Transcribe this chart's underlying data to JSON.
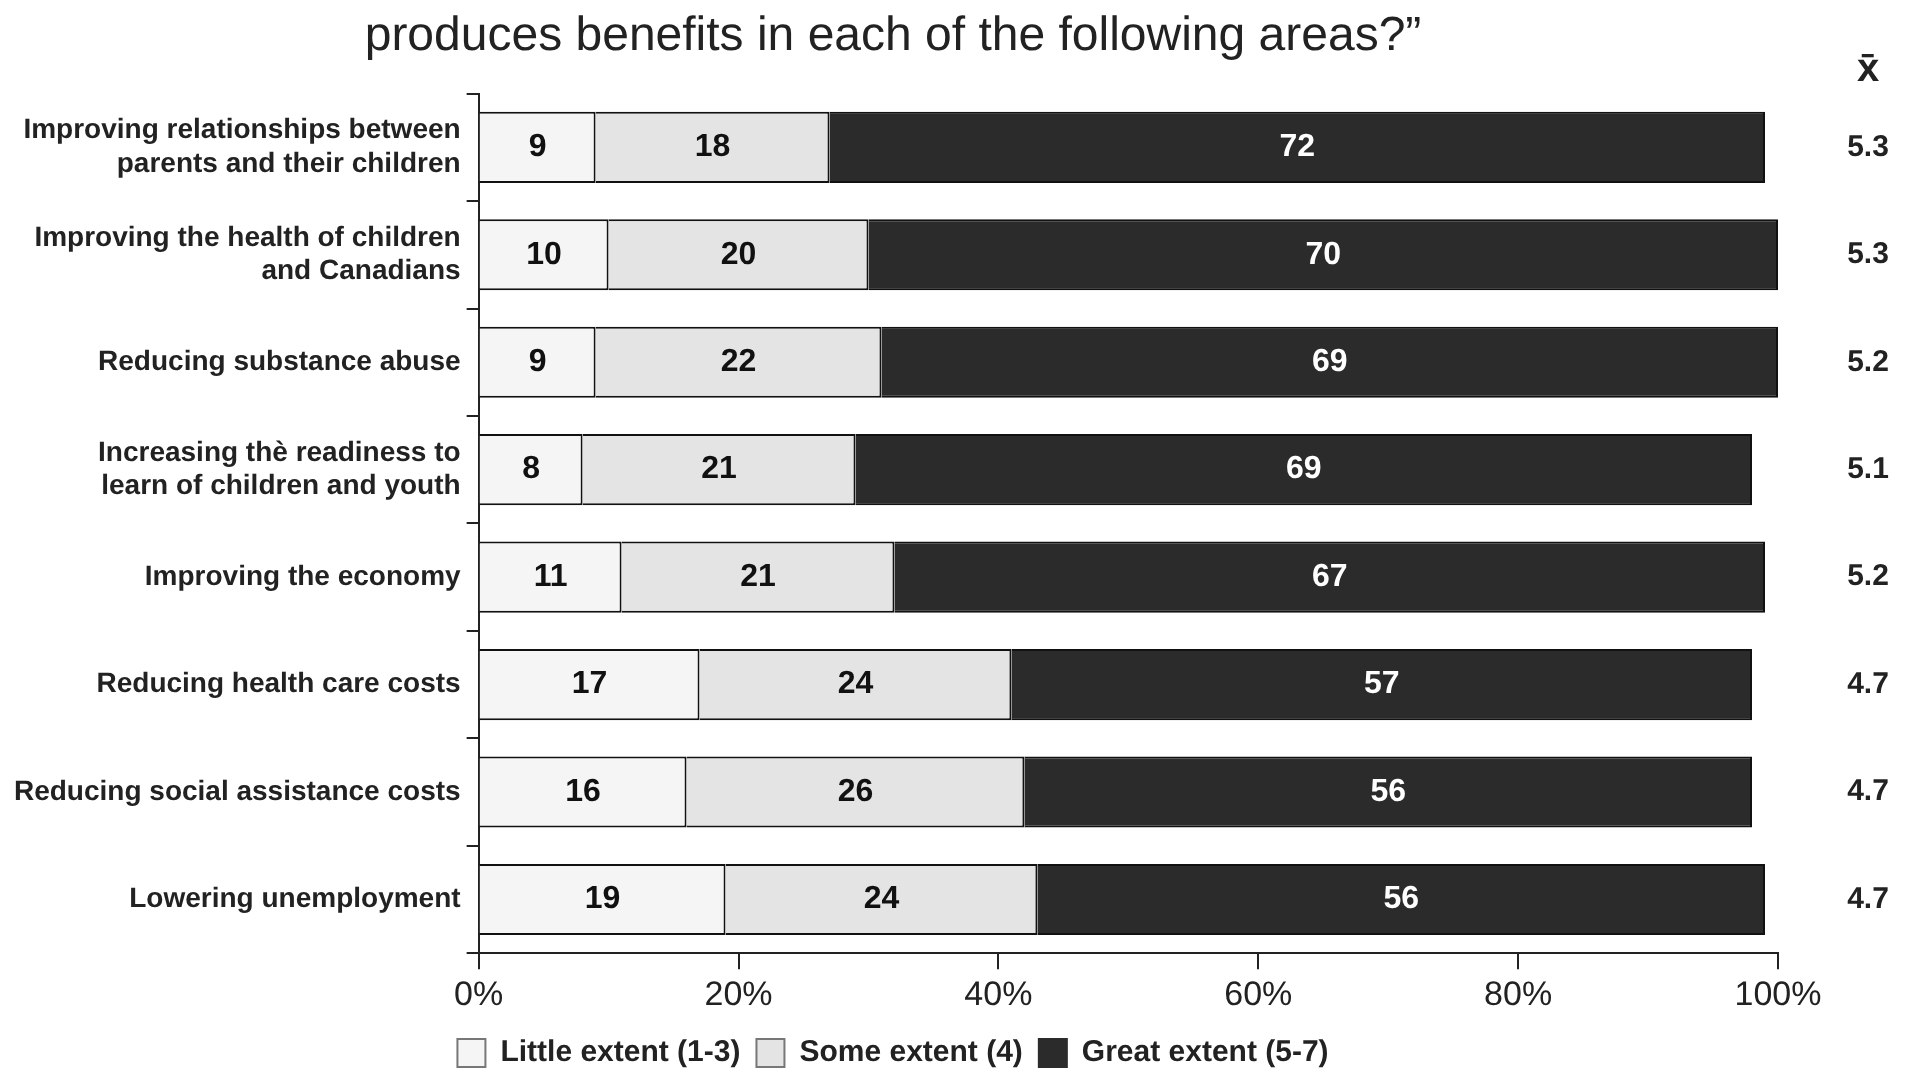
{
  "chart_data": {
    "type": "bar",
    "orientation": "horizontal",
    "stacked": true,
    "title": "produces benefits in each of the following areas?”",
    "categories": [
      "Improving relationships between parents and their children",
      "Improving the health of children and Canadians",
      "Reducing substance abuse",
      "Increasing thè readiness to learn of children and youth",
      "Improving the economy",
      "Reducing health care costs",
      "Reducing social assistance costs",
      "Lowering unemployment"
    ],
    "series": [
      {
        "name": "Little extent (1-3)",
        "color": "#f5f5f5",
        "values": [
          9,
          10,
          9,
          8,
          11,
          17,
          16,
          19
        ]
      },
      {
        "name": "Some extent (4)",
        "color": "#e4e4e4",
        "values": [
          18,
          20,
          22,
          21,
          21,
          24,
          26,
          24
        ]
      },
      {
        "name": "Great extent (5-7)",
        "color": "#2b2b2b",
        "values": [
          72,
          70,
          69,
          69,
          67,
          57,
          56,
          56
        ]
      }
    ],
    "xlim": [
      0,
      100
    ],
    "xticks": [
      {
        "value": 0,
        "label": "0%"
      },
      {
        "value": 20,
        "label": "20%"
      },
      {
        "value": 40,
        "label": "40%"
      },
      {
        "value": 60,
        "label": "60%"
      },
      {
        "value": 80,
        "label": "80%"
      },
      {
        "value": 100,
        "label": "100%"
      }
    ],
    "data_labels": true,
    "grid": false,
    "legend": "bottom",
    "annotations": [
      "x̄",
      "5.3",
      "5.3",
      "5.2",
      "5.1",
      "5.2",
      "4.7",
      "4.7",
      "4.7"
    ]
  }
}
